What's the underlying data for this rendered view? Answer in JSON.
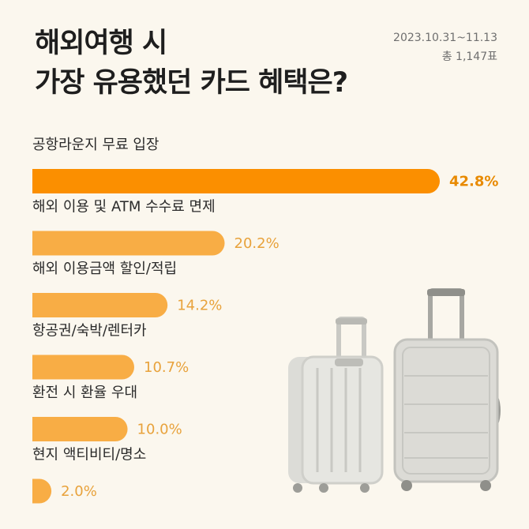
{
  "header": {
    "title_line1": "해외여행 시",
    "title_line2": "가장 유용했던 카드 혜택은?",
    "date_range": "2023.10.31~11.13",
    "total": "총 1,147표"
  },
  "colors": {
    "top_bar": "#fb8f00",
    "bar": "#f8ad45",
    "top_value": "#e88a00",
    "value": "#e8a23b",
    "background": "#fbf7ee"
  },
  "chart_data": {
    "type": "bar",
    "orientation": "horizontal",
    "categories": [
      "공항라운지 무료 입장",
      "해외 이용 및 ATM 수수료 면제",
      "해외 이용금액 할인/적립",
      "항공권/숙박/렌터카",
      "환전 시 환율 우대",
      "현지 액티비티/명소"
    ],
    "values": [
      42.8,
      20.2,
      14.2,
      10.7,
      10.0,
      2.0
    ],
    "value_labels": [
      "42.8%",
      "20.2%",
      "14.2%",
      "10.7%",
      "10.0%",
      "2.0%"
    ],
    "unit": "%",
    "highlighted_index": 0
  }
}
